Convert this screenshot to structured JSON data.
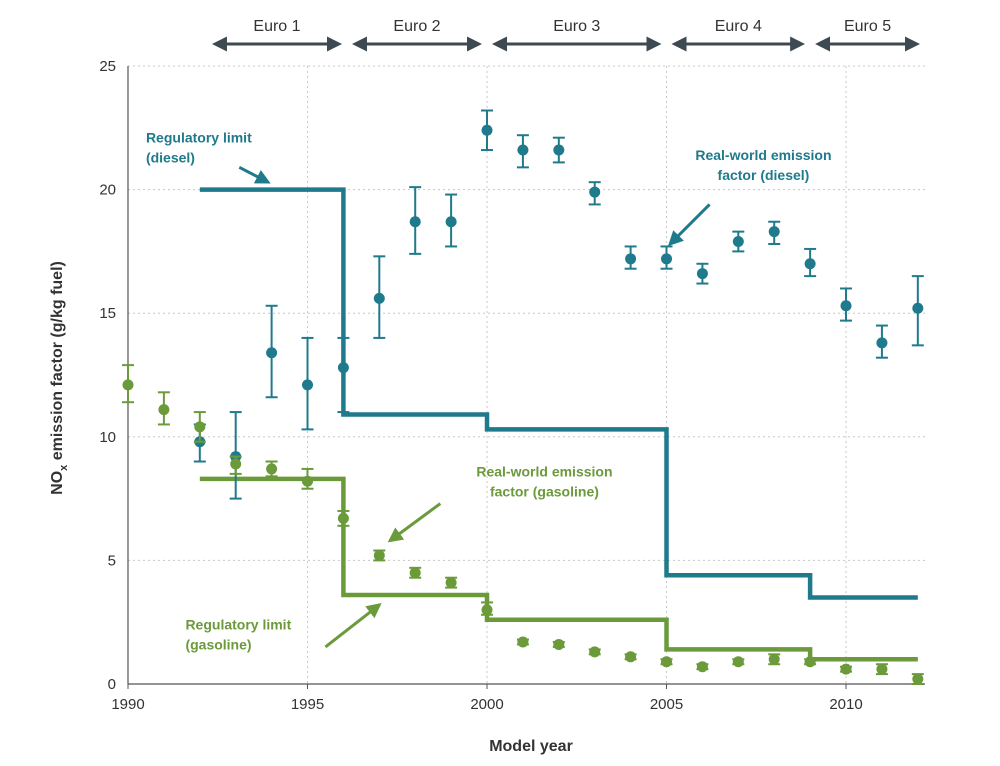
{
  "chart_data": {
    "type": "scatter",
    "title": "",
    "xlabel": "Model year",
    "ylabel_main": "NO",
    "ylabel_sub": "x",
    "ylabel_rest": " emission factor (g/kg fuel)",
    "xlim": [
      1990,
      2012.2
    ],
    "ylim": [
      0,
      25
    ],
    "xticks": [
      1990,
      1995,
      2000,
      2005,
      2010
    ],
    "yticks": [
      0,
      5,
      10,
      15,
      20,
      25
    ],
    "grid": "dotted",
    "colors": {
      "diesel": "#1f7a8c",
      "gasoline": "#6b9a3b",
      "arrow": "#3d4a52",
      "text": "#333333"
    },
    "euro_stages": [
      {
        "label": "Euro 1",
        "start": 1992.2,
        "end": 1996.1
      },
      {
        "label": "Euro 2",
        "start": 1996.1,
        "end": 2000.0
      },
      {
        "label": "Euro 3",
        "start": 2000.0,
        "end": 2005.0
      },
      {
        "label": "Euro 4",
        "start": 2005.0,
        "end": 2009.0
      },
      {
        "label": "Euro 5",
        "start": 2009.0,
        "end": 2012.2
      }
    ],
    "series": [
      {
        "name": "Real-world emission factor (diesel)",
        "kind": "points",
        "color_key": "diesel",
        "points": [
          {
            "x": 1992,
            "y": 9.8,
            "lo": 9.0,
            "hi": 10.5
          },
          {
            "x": 1993,
            "y": 9.2,
            "lo": 7.5,
            "hi": 11.0
          },
          {
            "x": 1994,
            "y": 13.4,
            "lo": 11.6,
            "hi": 15.3
          },
          {
            "x": 1995,
            "y": 12.1,
            "lo": 10.3,
            "hi": 14.0
          },
          {
            "x": 1996,
            "y": 12.8,
            "lo": 11.0,
            "hi": 14.0
          },
          {
            "x": 1997,
            "y": 15.6,
            "lo": 14.0,
            "hi": 17.3
          },
          {
            "x": 1998,
            "y": 18.7,
            "lo": 17.4,
            "hi": 20.1
          },
          {
            "x": 1999,
            "y": 18.7,
            "lo": 17.7,
            "hi": 19.8
          },
          {
            "x": 2000,
            "y": 22.4,
            "lo": 21.6,
            "hi": 23.2
          },
          {
            "x": 2001,
            "y": 21.6,
            "lo": 20.9,
            "hi": 22.2
          },
          {
            "x": 2002,
            "y": 21.6,
            "lo": 21.1,
            "hi": 22.1
          },
          {
            "x": 2003,
            "y": 19.9,
            "lo": 19.4,
            "hi": 20.3
          },
          {
            "x": 2004,
            "y": 17.2,
            "lo": 16.8,
            "hi": 17.7
          },
          {
            "x": 2005,
            "y": 17.2,
            "lo": 16.8,
            "hi": 17.7
          },
          {
            "x": 2006,
            "y": 16.6,
            "lo": 16.2,
            "hi": 17.0
          },
          {
            "x": 2007,
            "y": 17.9,
            "lo": 17.5,
            "hi": 18.3
          },
          {
            "x": 2008,
            "y": 18.3,
            "lo": 17.8,
            "hi": 18.7
          },
          {
            "x": 2009,
            "y": 17.0,
            "lo": 16.5,
            "hi": 17.6
          },
          {
            "x": 2010,
            "y": 15.3,
            "lo": 14.7,
            "hi": 16.0
          },
          {
            "x": 2011,
            "y": 13.8,
            "lo": 13.2,
            "hi": 14.5
          },
          {
            "x": 2012,
            "y": 15.2,
            "lo": 13.7,
            "hi": 16.5
          }
        ]
      },
      {
        "name": "Real-world emission factor (gasoline)",
        "kind": "points",
        "color_key": "gasoline",
        "points": [
          {
            "x": 1990,
            "y": 12.1,
            "lo": 11.4,
            "hi": 12.9
          },
          {
            "x": 1991,
            "y": 11.1,
            "lo": 10.5,
            "hi": 11.8
          },
          {
            "x": 1992,
            "y": 10.4,
            "lo": 9.8,
            "hi": 11.0
          },
          {
            "x": 1993,
            "y": 8.9,
            "lo": 8.5,
            "hi": 9.2
          },
          {
            "x": 1994,
            "y": 8.7,
            "lo": 8.4,
            "hi": 9.0
          },
          {
            "x": 1995,
            "y": 8.2,
            "lo": 7.9,
            "hi": 8.7
          },
          {
            "x": 1996,
            "y": 6.7,
            "lo": 6.4,
            "hi": 7.0
          },
          {
            "x": 1997,
            "y": 5.2,
            "lo": 5.0,
            "hi": 5.4
          },
          {
            "x": 1998,
            "y": 4.5,
            "lo": 4.3,
            "hi": 4.7
          },
          {
            "x": 1999,
            "y": 4.1,
            "lo": 3.9,
            "hi": 4.3
          },
          {
            "x": 2000,
            "y": 3.0,
            "lo": 2.8,
            "hi": 3.3
          },
          {
            "x": 2001,
            "y": 1.7,
            "lo": 1.6,
            "hi": 1.8
          },
          {
            "x": 2002,
            "y": 1.6,
            "lo": 1.5,
            "hi": 1.7
          },
          {
            "x": 2003,
            "y": 1.3,
            "lo": 1.2,
            "hi": 1.4
          },
          {
            "x": 2004,
            "y": 1.1,
            "lo": 1.0,
            "hi": 1.2
          },
          {
            "x": 2005,
            "y": 0.9,
            "lo": 0.8,
            "hi": 1.0
          },
          {
            "x": 2006,
            "y": 0.7,
            "lo": 0.6,
            "hi": 0.8
          },
          {
            "x": 2007,
            "y": 0.9,
            "lo": 0.8,
            "hi": 1.0
          },
          {
            "x": 2008,
            "y": 1.0,
            "lo": 0.8,
            "hi": 1.2
          },
          {
            "x": 2009,
            "y": 0.9,
            "lo": 0.8,
            "hi": 1.0
          },
          {
            "x": 2010,
            "y": 0.6,
            "lo": 0.5,
            "hi": 0.7
          },
          {
            "x": 2011,
            "y": 0.6,
            "lo": 0.4,
            "hi": 0.8
          },
          {
            "x": 2012,
            "y": 0.2,
            "lo": 0.0,
            "hi": 0.4
          }
        ]
      },
      {
        "name": "Regulatory limit (diesel)",
        "kind": "step",
        "color_key": "diesel",
        "steps": [
          {
            "x0": 1992.0,
            "x1": 1996.0,
            "y": 20.0
          },
          {
            "x0": 1996.0,
            "x1": 2000.0,
            "y": 10.9
          },
          {
            "x0": 2000.0,
            "x1": 2005.0,
            "y": 10.3
          },
          {
            "x0": 2005.0,
            "x1": 2009.0,
            "y": 4.4
          },
          {
            "x0": 2009.0,
            "x1": 2012.0,
            "y": 3.5
          }
        ]
      },
      {
        "name": "Regulatory limit (gasoline)",
        "kind": "step",
        "color_key": "gasoline",
        "steps": [
          {
            "x0": 1992.0,
            "x1": 1996.0,
            "y": 8.3
          },
          {
            "x0": 1996.0,
            "x1": 2000.0,
            "y": 3.6
          },
          {
            "x0": 2000.0,
            "x1": 2005.0,
            "y": 2.6
          },
          {
            "x0": 2005.0,
            "x1": 2009.0,
            "y": 1.4
          },
          {
            "x0": 2009.0,
            "x1": 2012.0,
            "y": 1.0
          }
        ]
      }
    ],
    "annotations": [
      {
        "id": "diesel-limit",
        "lines": [
          "Regulatory limit",
          "(diesel)"
        ],
        "color_key": "diesel",
        "anchor": "start",
        "text_at": [
          1990.5,
          21.9
        ],
        "arrow_from": [
          1993.1,
          20.9
        ],
        "arrow_to": [
          1993.9,
          20.3
        ]
      },
      {
        "id": "diesel-real",
        "lines": [
          "Real-world emission",
          "factor (diesel)"
        ],
        "color_key": "diesel",
        "anchor": "middle",
        "text_at": [
          2007.7,
          21.2
        ],
        "arrow_from": [
          2006.2,
          19.4
        ],
        "arrow_to": [
          2005.1,
          17.8
        ]
      },
      {
        "id": "gasoline-real",
        "lines": [
          "Real-world emission",
          "factor (gasoline)"
        ],
        "color_key": "gasoline",
        "anchor": "middle",
        "text_at": [
          2001.6,
          8.4
        ],
        "arrow_from": [
          1998.7,
          7.3
        ],
        "arrow_to": [
          1997.3,
          5.8
        ]
      },
      {
        "id": "gasoline-limit",
        "lines": [
          "Regulatory limit",
          "(gasoline)"
        ],
        "color_key": "gasoline",
        "anchor": "start",
        "text_at": [
          1991.6,
          2.2
        ],
        "arrow_from": [
          1995.5,
          1.5
        ],
        "arrow_to": [
          1997.0,
          3.2
        ]
      }
    ]
  }
}
